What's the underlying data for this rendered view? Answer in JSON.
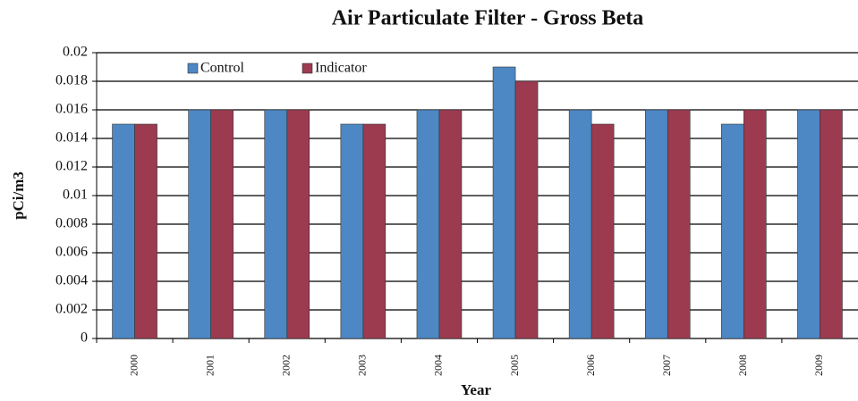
{
  "chart_data": {
    "type": "bar",
    "title": "Air Particulate Filter - Gross Beta",
    "x_label": "Year",
    "y_label": "pCi/m3",
    "categories": [
      "2000",
      "2001",
      "2002",
      "2003",
      "2004",
      "2005",
      "2006",
      "2007",
      "2008",
      "2009"
    ],
    "series": [
      {
        "name": "Control",
        "color": "#4d87c4",
        "values": [
          0.015,
          0.016,
          0.016,
          0.015,
          0.016,
          0.019,
          0.016,
          0.016,
          0.015,
          0.016
        ]
      },
      {
        "name": "Indicator",
        "color": "#9c3a50",
        "values": [
          0.015,
          0.016,
          0.016,
          0.015,
          0.016,
          0.018,
          0.015,
          0.016,
          0.016,
          0.016
        ]
      }
    ],
    "ylim": [
      0,
      0.02
    ],
    "yticks": [
      0,
      0.002,
      0.004,
      0.006,
      0.008,
      0.01,
      0.012,
      0.014,
      0.016,
      0.018,
      0.02
    ],
    "grid": true,
    "legend": "top-left"
  }
}
